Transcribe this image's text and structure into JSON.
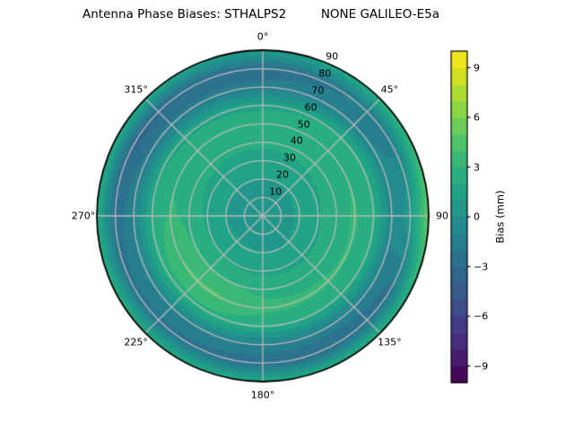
{
  "title": "Antenna Phase Biases: STHALPS2         NONE GALILEO-E5a",
  "chart_data": {
    "type": "heatmap",
    "projection": "polar",
    "title": "Antenna Phase Biases: STHALPS2         NONE GALILEO-E5a",
    "theta_zero_location": "top",
    "theta_direction": "clockwise",
    "theta_ticks": [
      {
        "deg": 0,
        "label": "0°"
      },
      {
        "deg": 45,
        "label": "45°"
      },
      {
        "deg": 90,
        "label": "90"
      },
      {
        "deg": 135,
        "label": "135°"
      },
      {
        "deg": 180,
        "label": "180°"
      },
      {
        "deg": 225,
        "label": "225°"
      },
      {
        "deg": 270,
        "label": "270°"
      },
      {
        "deg": 315,
        "label": "315°"
      }
    ],
    "r_ticks": [
      {
        "value": 10,
        "label": "10"
      },
      {
        "value": 20,
        "label": "20"
      },
      {
        "value": 30,
        "label": "30"
      },
      {
        "value": 40,
        "label": "40"
      },
      {
        "value": 50,
        "label": "50"
      },
      {
        "value": 60,
        "label": "60"
      },
      {
        "value": 70,
        "label": "70"
      },
      {
        "value": 80,
        "label": "80"
      },
      {
        "value": 90,
        "label": "90"
      }
    ],
    "r_max": 90,
    "r_label_azimuth_deg": 22.5,
    "grid_on": true,
    "colorbar": {
      "label": "Bias (mm)",
      "colormap": "viridis",
      "vmin": -10,
      "vmax": 10,
      "levels": 20,
      "tick_values": [
        9,
        6,
        3,
        0,
        -3,
        -6,
        -9
      ],
      "tick_labels": [
        "9",
        "6",
        "3",
        "0",
        "−3",
        "−6",
        "−9"
      ]
    },
    "field": {
      "azimuth_deg": [
        0,
        30,
        60,
        90,
        120,
        150,
        180,
        210,
        240,
        270,
        300,
        330
      ],
      "zenith_deg": [
        0,
        10,
        20,
        30,
        40,
        50,
        60,
        70,
        80,
        90
      ],
      "bias_mm": [
        [
          0.5,
          0.7,
          1.0,
          1.4,
          2.3,
          2.8,
          1.6,
          -1.6,
          -2.8,
          0.9
        ],
        [
          0.5,
          0.7,
          1.0,
          1.5,
          2.4,
          2.9,
          1.9,
          -1.2,
          -2.2,
          2.0
        ],
        [
          0.5,
          0.7,
          1.1,
          1.7,
          2.6,
          3.0,
          2.3,
          -0.9,
          -1.5,
          3.4
        ],
        [
          0.5,
          0.7,
          1.1,
          1.9,
          2.7,
          3.1,
          2.4,
          -0.8,
          0.8,
          5.2
        ],
        [
          0.5,
          0.7,
          1.1,
          1.8,
          2.6,
          3.1,
          2.2,
          -1.3,
          -2.4,
          3.2
        ],
        [
          0.5,
          0.7,
          1.0,
          1.7,
          2.6,
          3.2,
          2.1,
          -1.4,
          -3.0,
          2.4
        ],
        [
          0.5,
          0.7,
          1.0,
          1.7,
          2.7,
          3.3,
          2.2,
          -1.3,
          -2.7,
          2.1
        ],
        [
          0.5,
          0.7,
          1.1,
          1.9,
          3.1,
          4.2,
          2.7,
          -1.0,
          -2.4,
          2.4
        ],
        [
          0.5,
          0.7,
          1.1,
          1.9,
          3.1,
          4.1,
          2.6,
          -1.0,
          -2.3,
          2.6
        ],
        [
          0.5,
          0.7,
          1.0,
          1.8,
          2.7,
          3.2,
          2.2,
          -1.2,
          -2.6,
          2.6
        ],
        [
          0.5,
          0.7,
          1.0,
          1.6,
          2.4,
          2.8,
          1.8,
          -1.8,
          -3.4,
          2.3
        ],
        [
          0.5,
          0.7,
          1.0,
          1.5,
          2.3,
          2.7,
          1.8,
          -1.7,
          -3.0,
          1.8
        ]
      ]
    }
  }
}
